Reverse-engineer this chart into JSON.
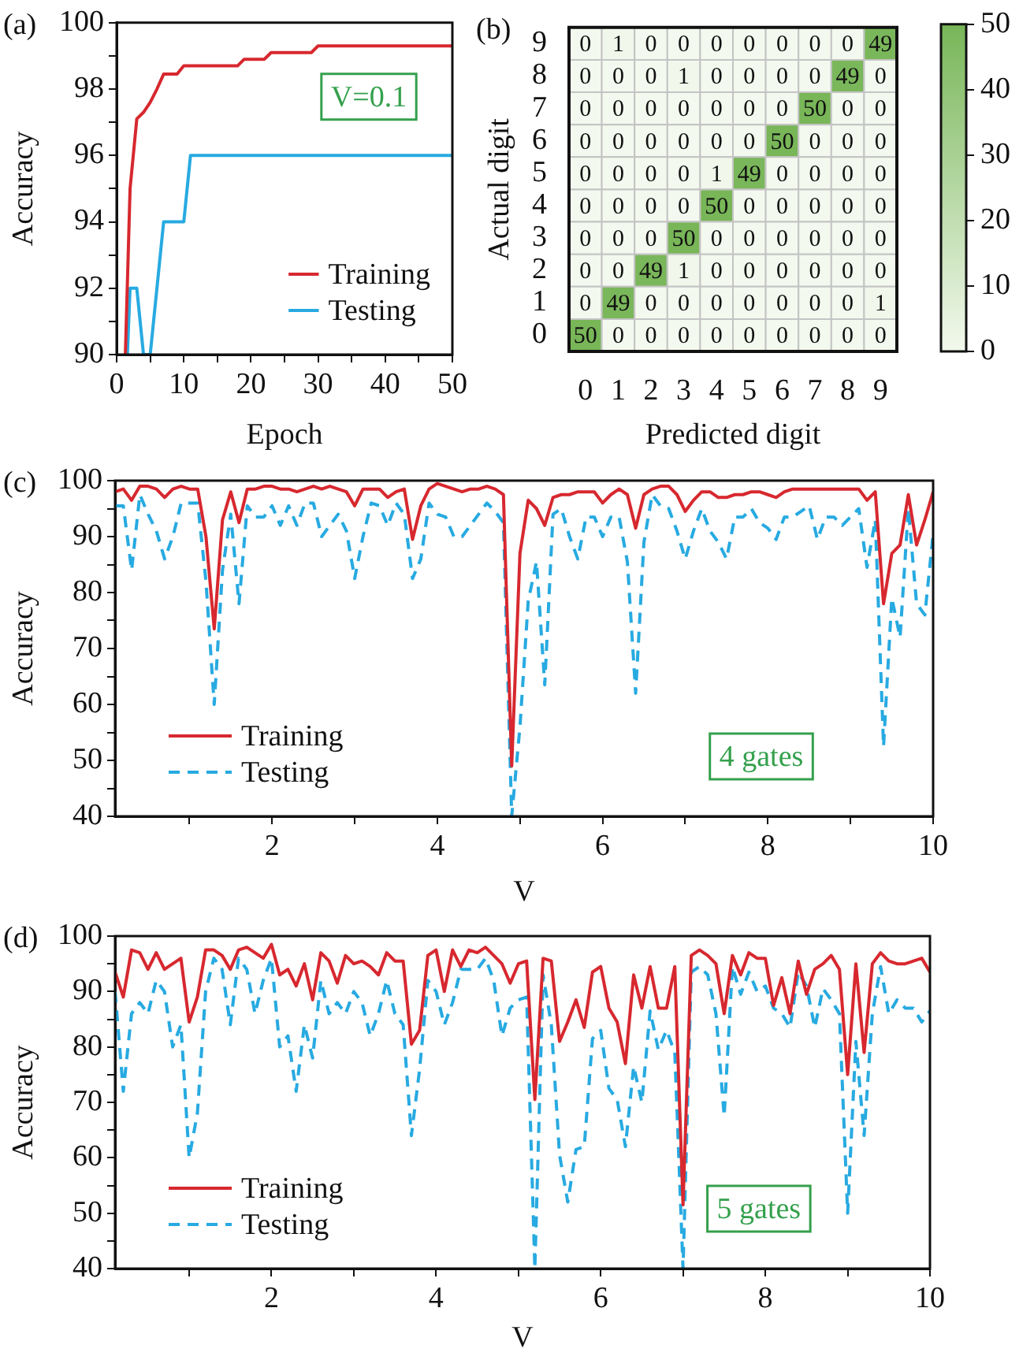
{
  "chart_data": [
    {
      "type": "line",
      "title": "(a)",
      "xlabel": "Epoch",
      "ylabel": "Accuracy",
      "xlim": [
        0,
        50
      ],
      "ylim": [
        90,
        100
      ],
      "xticks": [
        0,
        {
          "value": 5,
          "label": null
        },
        10,
        {
          "value": 15,
          "label": null
        },
        20,
        {
          "value": 25,
          "label": null
        },
        30,
        {
          "value": 35,
          "label": null
        },
        40,
        {
          "value": 45,
          "label": null
        },
        50
      ],
      "yticks": [
        90,
        {
          "value": 91,
          "label": null
        },
        92,
        {
          "value": 93,
          "label": null
        },
        94,
        {
          "value": 95,
          "label": null
        },
        96,
        {
          "value": 97,
          "label": null
        },
        98,
        {
          "value": 99,
          "label": null
        },
        100
      ],
      "grid": false,
      "legend": "bottom right",
      "annotations": [
        "V=0.1"
      ],
      "series": [
        {
          "name": "Training",
          "color": "#d7282f",
          "line_style": "solid",
          "x": [
            1.3,
            2,
            3,
            4,
            5,
            6,
            7,
            8,
            9,
            10,
            11,
            18,
            19,
            22,
            23,
            29,
            30,
            50
          ],
          "values": [
            90,
            95,
            97.1,
            97.3,
            97.6,
            98,
            98.45,
            98.45,
            98.45,
            98.7,
            98.7,
            98.7,
            98.9,
            98.9,
            99.1,
            99.1,
            99.3,
            99.3
          ]
        },
        {
          "name": "Testing",
          "color": "#27aae1",
          "line_style": "solid",
          "x": [
            1.6,
            2,
            3,
            4,
            5,
            7,
            10,
            11,
            50
          ],
          "values": [
            90,
            92,
            92,
            90,
            90,
            94,
            94,
            96,
            96
          ]
        }
      ]
    },
    {
      "type": "heatmap",
      "title": "(b)",
      "xlabel": "Predicted digit",
      "ylabel": "Actual digit",
      "categories": [
        "0",
        "1",
        "2",
        "3",
        "4",
        "5",
        "6",
        "7",
        "8",
        "9"
      ],
      "y_categories": [
        "9",
        "8",
        "7",
        "6",
        "5",
        "4",
        "3",
        "2",
        "1",
        "0"
      ],
      "cells": [
        [
          0,
          1,
          0,
          0,
          0,
          0,
          0,
          0,
          0,
          49
        ],
        [
          0,
          0,
          0,
          1,
          0,
          0,
          0,
          0,
          49,
          0
        ],
        [
          0,
          0,
          0,
          0,
          0,
          0,
          0,
          50,
          0,
          0
        ],
        [
          0,
          0,
          0,
          0,
          0,
          0,
          50,
          0,
          0,
          0
        ],
        [
          0,
          0,
          0,
          0,
          1,
          49,
          0,
          0,
          0,
          0
        ],
        [
          0,
          0,
          0,
          0,
          50,
          0,
          0,
          0,
          0,
          0
        ],
        [
          0,
          0,
          0,
          50,
          0,
          0,
          0,
          0,
          0,
          0
        ],
        [
          0,
          0,
          49,
          1,
          0,
          0,
          0,
          0,
          0,
          0
        ],
        [
          0,
          49,
          0,
          0,
          0,
          0,
          0,
          0,
          0,
          1
        ],
        [
          50,
          0,
          0,
          0,
          0,
          0,
          0,
          0,
          0,
          0
        ]
      ],
      "clim": [
        0,
        50
      ],
      "cticks": [
        0,
        10,
        20,
        30,
        40,
        50
      ],
      "data_labels": true
    },
    {
      "type": "line",
      "title": "(c)",
      "xlabel": "V",
      "ylabel": "Accuracy",
      "xlim": [
        0.1,
        10
      ],
      "ylim": [
        40,
        100
      ],
      "xticks": [
        {
          "value": 1,
          "label": null
        },
        2,
        {
          "value": 3,
          "label": null
        },
        4,
        {
          "value": 5,
          "label": null
        },
        6,
        {
          "value": 7,
          "label": null
        },
        8,
        {
          "value": 9,
          "label": null
        },
        10
      ],
      "yticks": [
        40,
        {
          "value": 45,
          "label": null
        },
        50,
        {
          "value": 55,
          "label": null
        },
        60,
        {
          "value": 65,
          "label": null
        },
        70,
        {
          "value": 75,
          "label": null
        },
        80,
        {
          "value": 85,
          "label": null
        },
        90,
        {
          "value": 95,
          "label": null
        },
        100
      ],
      "grid": false,
      "legend": "bottom left",
      "annotations": [
        "4 gates"
      ],
      "x": [
        0.1,
        0.2,
        0.3,
        0.4,
        0.5,
        0.6,
        0.7,
        0.8,
        0.9,
        1.0,
        1.1,
        1.2,
        1.3,
        1.4,
        1.5,
        1.6,
        1.7,
        1.8,
        1.9,
        2.0,
        2.1,
        2.2,
        2.3,
        2.4,
        2.5,
        2.6,
        2.7,
        2.8,
        2.9,
        3.0,
        3.1,
        3.2,
        3.3,
        3.4,
        3.5,
        3.6,
        3.7,
        3.8,
        3.9,
        4.0,
        4.1,
        4.2,
        4.3,
        4.4,
        4.5,
        4.6,
        4.7,
        4.8,
        4.9,
        5.0,
        5.1,
        5.2,
        5.3,
        5.4,
        5.5,
        5.6,
        5.7,
        5.8,
        5.9,
        6.0,
        6.1,
        6.2,
        6.3,
        6.4,
        6.5,
        6.6,
        6.7,
        6.8,
        6.9,
        7.0,
        7.1,
        7.2,
        7.3,
        7.4,
        7.5,
        7.6,
        7.7,
        7.8,
        7.9,
        8.0,
        8.1,
        8.2,
        8.3,
        8.4,
        8.5,
        8.6,
        8.7,
        8.8,
        8.9,
        9.0,
        9.1,
        9.2,
        9.3,
        9.4,
        9.5,
        9.6,
        9.7,
        9.8,
        9.9,
        10.0
      ],
      "series": [
        {
          "name": "Training",
          "color": "#d7282f",
          "line_style": "solid",
          "values": [
            98,
            98.5,
            96.5,
            99,
            99,
            98.5,
            97,
            98.5,
            99,
            98.5,
            98.5,
            90,
            73.5,
            93,
            98,
            92.5,
            98.5,
            98.5,
            99,
            99,
            98.5,
            98.5,
            98,
            98.5,
            99,
            98.5,
            99,
            98.5,
            98,
            95.5,
            98.5,
            98.5,
            98.5,
            97,
            98,
            98.5,
            89.5,
            95.5,
            98.5,
            99.5,
            99,
            98.5,
            98,
            98.5,
            98.5,
            99,
            98.5,
            97.5,
            49,
            87,
            96.5,
            95,
            92,
            97,
            97.5,
            97.5,
            98,
            98,
            98,
            96,
            97.5,
            98.5,
            97.5,
            91.5,
            97.5,
            98.5,
            99,
            99,
            97.5,
            94.5,
            96.5,
            98,
            98,
            97,
            97,
            97.5,
            97.5,
            98,
            98,
            97.5,
            97,
            98,
            98.5,
            98.5,
            98.5,
            98.5,
            98.5,
            98.5,
            98.5,
            98.5,
            98.5,
            96.5,
            98,
            78,
            87,
            88.5,
            97.5,
            88.5,
            93,
            98
          ]
        },
        {
          "name": "Testing",
          "color": "#27aae1",
          "line_style": "dashed",
          "values": [
            95.5,
            95.5,
            84,
            97.5,
            94,
            91,
            86,
            90,
            96,
            96,
            96,
            82,
            60,
            84,
            94,
            78,
            95.5,
            93.5,
            93.5,
            95.5,
            92,
            95.5,
            92,
            96,
            96,
            90,
            92,
            94,
            91,
            82.5,
            90,
            96,
            95.5,
            92,
            96,
            94,
            82.5,
            86,
            96,
            94,
            93.5,
            90,
            90,
            92,
            94,
            96,
            94.5,
            92.5,
            40,
            56,
            78.5,
            85.5,
            63.5,
            94,
            95,
            90,
            86,
            93.5,
            93.5,
            90,
            93.5,
            93.5,
            85.5,
            62,
            89,
            97.5,
            95.5,
            95,
            91,
            86,
            91,
            95,
            91,
            89,
            86,
            93.5,
            93.5,
            95,
            92.5,
            91.5,
            89.5,
            93.5,
            93.5,
            94.5,
            95.5,
            89.5,
            93.5,
            93.5,
            92,
            93.5,
            95,
            84.5,
            93,
            52.5,
            79,
            72,
            95,
            78,
            76,
            90.5
          ]
        }
      ]
    },
    {
      "type": "line",
      "title": "(d)",
      "xlabel": "V",
      "ylabel": "Accuracy",
      "xlim": [
        0.1,
        10
      ],
      "ylim": [
        40,
        100
      ],
      "xticks": [
        {
          "value": 1,
          "label": null
        },
        2,
        {
          "value": 3,
          "label": null
        },
        4,
        {
          "value": 5,
          "label": null
        },
        6,
        {
          "value": 7,
          "label": null
        },
        8,
        {
          "value": 9,
          "label": null
        },
        10
      ],
      "yticks": [
        40,
        {
          "value": 45,
          "label": null
        },
        50,
        {
          "value": 55,
          "label": null
        },
        60,
        {
          "value": 65,
          "label": null
        },
        70,
        {
          "value": 75,
          "label": null
        },
        80,
        {
          "value": 85,
          "label": null
        },
        90,
        {
          "value": 95,
          "label": null
        },
        100
      ],
      "grid": false,
      "legend": "bottom left",
      "annotations": [
        "5 gates"
      ],
      "x": [
        0.1,
        0.2,
        0.3,
        0.4,
        0.5,
        0.6,
        0.7,
        0.8,
        0.9,
        1.0,
        1.1,
        1.2,
        1.3,
        1.4,
        1.5,
        1.6,
        1.7,
        1.8,
        1.9,
        2.0,
        2.1,
        2.2,
        2.3,
        2.4,
        2.5,
        2.6,
        2.7,
        2.8,
        2.9,
        3.0,
        3.1,
        3.2,
        3.3,
        3.4,
        3.5,
        3.6,
        3.7,
        3.8,
        3.9,
        4.0,
        4.1,
        4.2,
        4.3,
        4.4,
        4.5,
        4.6,
        4.7,
        4.8,
        4.9,
        5.0,
        5.1,
        5.2,
        5.3,
        5.4,
        5.5,
        5.6,
        5.7,
        5.8,
        5.9,
        6.0,
        6.1,
        6.2,
        6.3,
        6.4,
        6.5,
        6.6,
        6.7,
        6.8,
        6.9,
        7.0,
        7.1,
        7.2,
        7.3,
        7.4,
        7.5,
        7.6,
        7.7,
        7.8,
        7.9,
        8.0,
        8.1,
        8.2,
        8.3,
        8.4,
        8.5,
        8.6,
        8.7,
        8.8,
        8.9,
        9.0,
        9.1,
        9.2,
        9.3,
        9.4,
        9.5,
        9.6,
        9.7,
        9.8,
        9.9,
        10.0
      ],
      "series": [
        {
          "name": "Training",
          "color": "#d7282f",
          "line_style": "solid",
          "values": [
            93.5,
            89,
            97.5,
            97,
            94,
            97,
            94,
            95,
            96,
            84.5,
            89,
            97.5,
            97.5,
            96.5,
            94,
            97.5,
            98,
            97,
            96,
            98.5,
            93,
            94,
            91,
            95,
            88.5,
            97,
            95.5,
            91.5,
            96.5,
            95,
            95.5,
            94.5,
            93,
            97,
            95.5,
            95.5,
            80.5,
            83,
            96.5,
            97.5,
            90,
            97.5,
            94.5,
            97.5,
            97,
            98,
            96.5,
            95,
            91.5,
            95,
            95.5,
            70.5,
            96,
            95.5,
            81,
            84.5,
            88.5,
            83.5,
            93.5,
            94.5,
            87,
            84.5,
            77,
            93,
            87,
            94.5,
            87,
            87,
            94.5,
            51.5,
            96.5,
            97.5,
            96.5,
            95,
            86,
            96.5,
            93,
            97,
            96,
            96,
            87.5,
            92.5,
            86,
            95.5,
            89.5,
            94,
            95,
            96.5,
            94,
            75,
            95,
            79,
            95,
            97,
            95.5,
            95,
            95,
            95.5,
            96,
            93.5
          ]
        },
        {
          "name": "Testing",
          "color": "#27aae1",
          "line_style": "dashed",
          "values": [
            90,
            72,
            86,
            88,
            86,
            92,
            90,
            80,
            84,
            60,
            68,
            90,
            96,
            94,
            84,
            96,
            94,
            86,
            92,
            96,
            80,
            82,
            72,
            84,
            78,
            92,
            86,
            88,
            86,
            90,
            88,
            82,
            86,
            92,
            86,
            84,
            64,
            76,
            92,
            90,
            84,
            88,
            94,
            94,
            94,
            96,
            92,
            82,
            87,
            88.5,
            89,
            40,
            93,
            84,
            60.5,
            52,
            61.5,
            62,
            81.5,
            83,
            72.5,
            70.5,
            62,
            76.5,
            70,
            86.5,
            79.5,
            83,
            79,
            40,
            93.5,
            94.5,
            93,
            86,
            67.5,
            94.5,
            89.5,
            93.5,
            90,
            91,
            87,
            86,
            83.5,
            93.5,
            91,
            83.5,
            90.5,
            88.5,
            86,
            50,
            81,
            64,
            86,
            94.5,
            86,
            88.5,
            87,
            87,
            84.5,
            86.5
          ]
        }
      ]
    }
  ]
}
